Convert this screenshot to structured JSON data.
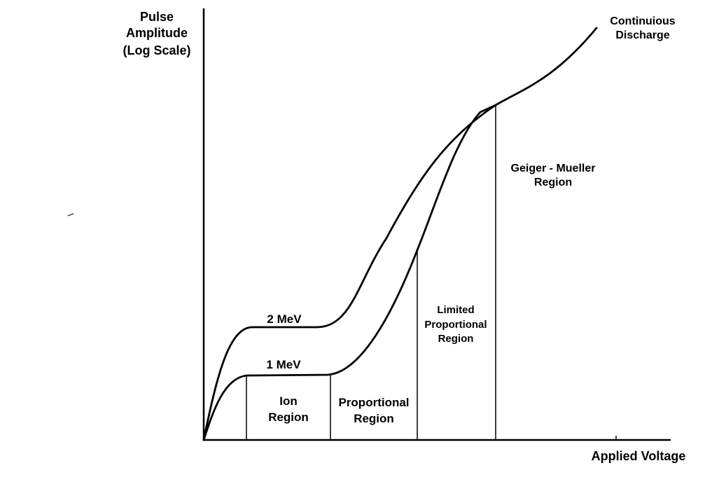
{
  "chart_data": {
    "type": "line",
    "title": "",
    "ylabel": [
      "Pulse",
      "Amplitude",
      "(Log Scale)"
    ],
    "xlabel": "Applied Voltage",
    "grid": false,
    "series": [
      {
        "name": "2 MeV"
      },
      {
        "name": "1 MeV"
      }
    ],
    "regions": [
      {
        "name": "ion-region",
        "label": [
          "Ion",
          "Region"
        ]
      },
      {
        "name": "proportional-region",
        "label": [
          "Proportional",
          "Region"
        ]
      },
      {
        "name": "limited-proportional-region",
        "label": [
          "Limited",
          "Proportional",
          "Region"
        ]
      },
      {
        "name": "geiger-mueller-region",
        "label": [
          "Geiger - Mueller",
          "Region"
        ]
      },
      {
        "name": "continuous-discharge",
        "label": [
          "Continuious",
          "Discharge"
        ]
      }
    ]
  }
}
